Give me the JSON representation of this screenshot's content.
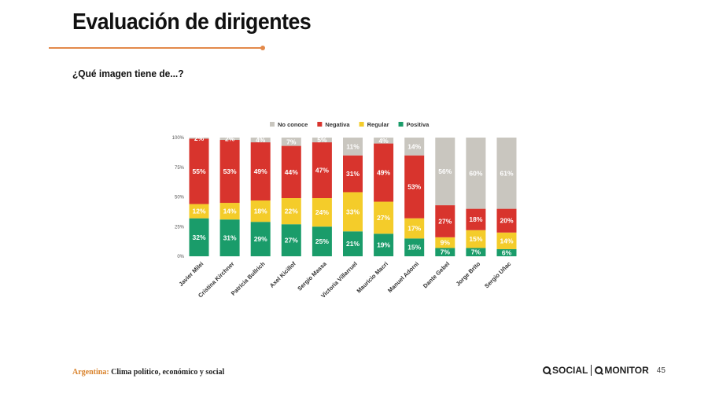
{
  "slide": {
    "title": "Evaluación de dirigentes",
    "subtitle": "¿Qué imagen tiene de...?",
    "footer_country": "Argentina:",
    "footer_text": "Clima político, económico y social",
    "logo_social": "SOCIAL",
    "logo_monitor": "MONITOR",
    "page_number": "45"
  },
  "chart_data": {
    "type": "bar",
    "stacked": true,
    "title": "",
    "xlabel": "",
    "ylabel": "",
    "ylim": [
      0,
      100
    ],
    "y_ticks": [
      "0%",
      "25%",
      "50%",
      "75%",
      "100%"
    ],
    "legend_position": "top",
    "categories": [
      "Javier Milei",
      "Cristina Kirchner",
      "Patricia Bullrich",
      "Axel Kicillof",
      "Sergio Massa",
      "Victoria Villarruel",
      "Mauricio Macri",
      "Manuel Adorni",
      "Dante Gebel",
      "Jorge Brito",
      "Sergio Uñac"
    ],
    "series": [
      {
        "name": "Positiva",
        "color": "#1a9c6a",
        "values": [
          32,
          31,
          29,
          27,
          25,
          21,
          19,
          15,
          7,
          7,
          6
        ],
        "labels": [
          "32%",
          "31%",
          "29%",
          "27%",
          "25%",
          "21%",
          "19%",
          "15%",
          "7%",
          "7%",
          "6%"
        ]
      },
      {
        "name": "Regular",
        "color": "#f4cc2a",
        "values": [
          12,
          14,
          18,
          22,
          24,
          33,
          27,
          17,
          9,
          15,
          14
        ],
        "labels": [
          "12%",
          "14%",
          "18%",
          "22%",
          "24%",
          "33%",
          "27%",
          "17%",
          "9%",
          "15%",
          "14%"
        ]
      },
      {
        "name": "Negativa",
        "color": "#d8342d",
        "values": [
          55,
          53,
          49,
          44,
          47,
          31,
          49,
          53,
          27,
          18,
          20
        ],
        "labels": [
          "55%",
          "53%",
          "49%",
          "44%",
          "47%",
          "31%",
          "49%",
          "53%",
          "27%",
          "18%",
          "20%"
        ]
      },
      {
        "name": "No conoce",
        "color": "#c9c6bf",
        "values": [
          2,
          2,
          4,
          7,
          5,
          11,
          4,
          14,
          56,
          60,
          61
        ],
        "labels": [
          "2%",
          "2%",
          "4%",
          "7%",
          "5%",
          "11%",
          "4%",
          "14%",
          "56%",
          "60%",
          "61%"
        ]
      }
    ],
    "legend_order": [
      "No conoce",
      "Negativa",
      "Regular",
      "Positiva"
    ]
  }
}
